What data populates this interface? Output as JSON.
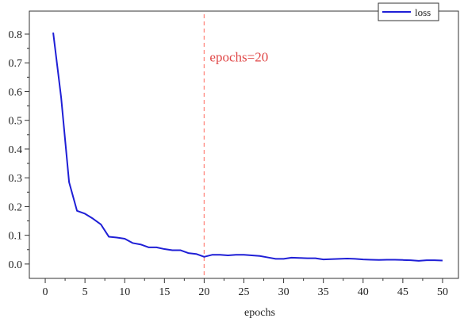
{
  "chart_data": {
    "type": "line",
    "xlabel": "epochs",
    "ylabel": "",
    "xlim": [
      -2,
      52
    ],
    "ylim": [
      -0.05,
      0.88
    ],
    "xticks": [
      0,
      5,
      10,
      15,
      20,
      25,
      30,
      35,
      40,
      45,
      50
    ],
    "yticks": [
      0.0,
      0.1,
      0.2,
      0.3,
      0.4,
      0.5,
      0.6,
      0.7,
      0.8
    ],
    "xtick_labels": [
      "0",
      "5",
      "10",
      "15",
      "20",
      "25",
      "30",
      "35",
      "40",
      "45",
      "50"
    ],
    "ytick_labels": [
      "0.0",
      "0.1",
      "0.2",
      "0.3",
      "0.4",
      "0.5",
      "0.6",
      "0.7",
      "0.8"
    ],
    "grid": false,
    "legend_position": "top-right",
    "series": [
      {
        "name": "loss",
        "color": "#1f1fd6",
        "x": [
          1,
          2,
          3,
          4,
          5,
          6,
          7,
          8,
          9,
          10,
          11,
          12,
          13,
          14,
          15,
          16,
          17,
          18,
          19,
          20,
          21,
          22,
          23,
          24,
          25,
          26,
          27,
          28,
          29,
          30,
          31,
          32,
          33,
          34,
          35,
          36,
          37,
          38,
          39,
          40,
          41,
          42,
          43,
          44,
          45,
          46,
          47,
          48,
          49,
          50
        ],
        "y": [
          0.805,
          0.58,
          0.285,
          0.185,
          0.175,
          0.158,
          0.138,
          0.095,
          0.092,
          0.088,
          0.073,
          0.068,
          0.058,
          0.058,
          0.052,
          0.048,
          0.048,
          0.038,
          0.035,
          0.025,
          0.032,
          0.032,
          0.03,
          0.032,
          0.032,
          0.03,
          0.028,
          0.023,
          0.018,
          0.018,
          0.022,
          0.021,
          0.02,
          0.02,
          0.016,
          0.017,
          0.018,
          0.019,
          0.018,
          0.016,
          0.015,
          0.014,
          0.015,
          0.015,
          0.014,
          0.013,
          0.011,
          0.013,
          0.013,
          0.012
        ]
      }
    ],
    "annotations": [
      {
        "type": "vline",
        "x": 20,
        "color": "#ff8a80",
        "style": "dashed"
      },
      {
        "type": "text",
        "text": "epochs=20",
        "x": 20.5,
        "y": 0.705,
        "color": "#e04848"
      }
    ]
  }
}
